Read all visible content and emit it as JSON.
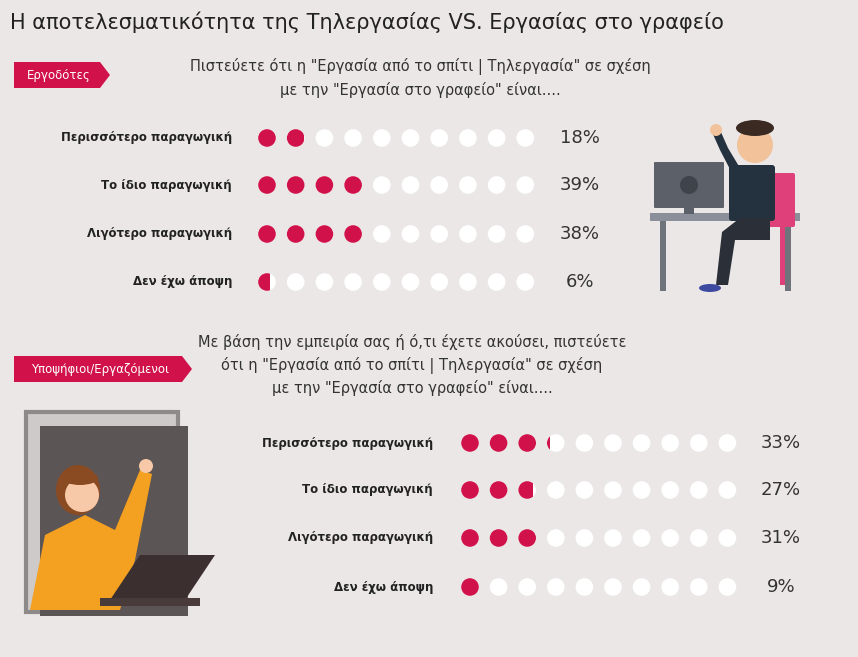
{
  "title": "Η αποτελεσματικότητα της Τηλεργασίας VS. Εργασίας στο γραφείο",
  "chart_data": [
    {
      "type": "dot_matrix",
      "title": "Εργοδότες",
      "subtitle": "Πιστεύετε ότι η \"Εργασία από το σπίτι | Τηλεργασία\" σε σχέση\nμε την \"Εργασία στο γραφείο\" είναι....",
      "categories": [
        "Περισσότερο παραγωγική",
        "Το ίδιο παραγωγική",
        "Λιγότερο παραγωγική",
        "Δεν έχω άποψη"
      ],
      "values": [
        18,
        39,
        38,
        6
      ],
      "value_labels": [
        "18%",
        "39%",
        "38%",
        "6%"
      ],
      "xlim": [
        0,
        100
      ],
      "tick_labels": false,
      "data_labels": true,
      "color": "#d0114a"
    },
    {
      "type": "dot_matrix",
      "title": "Υποψήφιοι/Εργαζόμενοι",
      "subtitle": "Με βάση την εμπειρία σας ή ό,τι έχετε ακούσει, πιστεύετε\nότι η \"Εργασία από το σπίτι | Τηλεργασία\" σε σχέση\nμε την \"Εργασία στο γραφείο\" είναι....",
      "categories": [
        "Περισσότερο παραγωγική",
        "Το ίδιο παραγωγική",
        "Λιγότερο παραγωγική",
        "Δεν έχω άποψη"
      ],
      "values": [
        33,
        27,
        31,
        9
      ],
      "value_labels": [
        "33%",
        "27%",
        "31%",
        "9%"
      ],
      "xlim": [
        0,
        100
      ],
      "tick_labels": false,
      "data_labels": true,
      "color": "#d0114a"
    }
  ]
}
